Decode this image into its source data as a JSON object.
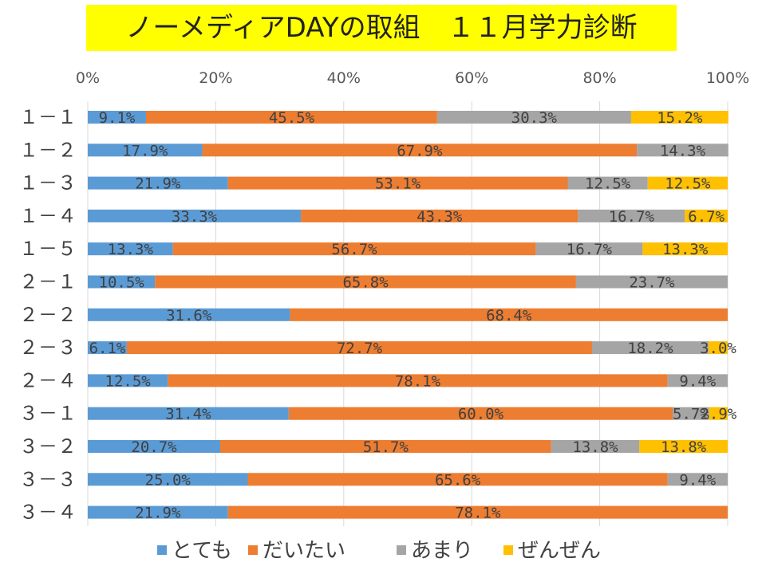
{
  "chart_data": {
    "type": "bar",
    "orientation": "horizontal",
    "stacked": "percent",
    "title": "ノーメディアDAYの取組　１１月学力診断",
    "xlabel": "",
    "ylabel": "",
    "xlim": [
      0,
      100
    ],
    "x_ticks": [
      "0%",
      "20%",
      "40%",
      "60%",
      "80%",
      "100%"
    ],
    "grid": true,
    "legend_position": "bottom",
    "categories": [
      "１－１",
      "１－２",
      "１－３",
      "１－４",
      "１－５",
      "２－１",
      "２－２",
      "２－３",
      "２－４",
      "３－１",
      "３－２",
      "３－３",
      "３－４"
    ],
    "series": [
      {
        "name": "とても",
        "color": "#5b9bd5",
        "values": [
          9.1,
          17.9,
          21.9,
          33.3,
          13.3,
          10.5,
          31.6,
          6.1,
          12.5,
          31.4,
          20.7,
          25.0,
          21.9
        ],
        "labels": [
          "9.1%",
          "17.9%",
          "21.9%",
          "33.3%",
          "13.3%",
          "10.5%",
          "31.6%",
          "6.1%",
          "12.5%",
          "31.4%",
          "20.7%",
          "25.0%",
          "21.9%"
        ]
      },
      {
        "name": "だいたい",
        "color": "#ed7d31",
        "values": [
          45.5,
          67.9,
          53.1,
          43.3,
          56.7,
          65.8,
          68.4,
          72.7,
          78.1,
          60.0,
          51.7,
          65.6,
          78.1
        ],
        "labels": [
          "45.5%",
          "67.9%",
          "53.1%",
          "43.3%",
          "56.7%",
          "65.8%",
          "68.4%",
          "72.7%",
          "78.1%",
          "60.0%",
          "51.7%",
          "65.6%",
          "78.1%"
        ]
      },
      {
        "name": "あまり",
        "color": "#a5a5a5",
        "values": [
          30.3,
          14.3,
          12.5,
          16.7,
          16.7,
          23.7,
          0,
          18.2,
          9.4,
          5.7,
          13.8,
          9.4,
          0
        ],
        "labels": [
          "30.3%",
          "14.3%",
          "12.5%",
          "16.7%",
          "16.7%",
          "23.7%",
          "",
          "18.2%",
          "9.4%",
          "5.7%",
          "13.8%",
          "9.4%",
          ""
        ]
      },
      {
        "name": "ぜんぜん",
        "color": "#ffc000",
        "values": [
          15.2,
          0,
          12.5,
          6.7,
          13.3,
          0,
          0,
          3.0,
          0,
          2.9,
          13.8,
          0,
          0
        ],
        "labels": [
          "15.2%",
          "",
          "12.5%",
          "6.7%",
          "13.3%",
          "",
          "",
          "3.0%",
          "",
          "2.9%",
          "13.8%",
          "",
          ""
        ]
      }
    ]
  }
}
